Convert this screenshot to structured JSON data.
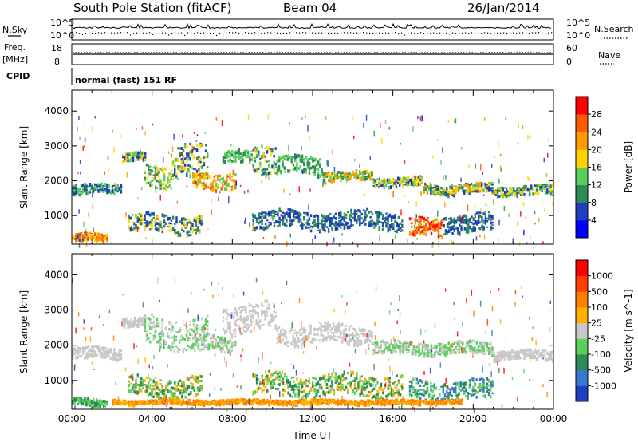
{
  "header": {
    "station": "South Pole Station (fitACF)",
    "beam": "Beam 04",
    "date": "26/Jan/2014"
  },
  "top_panels": {
    "nsky_label": "N.Sky",
    "nsky_ticks": [
      "10^5",
      "10^0"
    ],
    "nsearch_label": "N.Search",
    "nsearch_ticks": [
      "10^5",
      "10^0"
    ],
    "freq_label_1": "Freq.",
    "freq_label_2": "[MHz]",
    "freq_ticks": [
      "18",
      "8"
    ],
    "nave_label": "Nave",
    "nave_ticks": [
      "60",
      "0"
    ],
    "cpid_label": "CPID",
    "cpid_text": "normal (fast) 151 RF"
  },
  "chart_data": [
    {
      "type": "heatmap",
      "name": "power-panel",
      "ylabel": "Slant Range [km]",
      "xlabel": "",
      "ylim": [
        180,
        4600
      ],
      "xlim": [
        0,
        24
      ],
      "y_ticks": [
        1000,
        2000,
        3000,
        4000
      ],
      "y_tick_labels": [
        "1000",
        "2000",
        "3000",
        "4000"
      ],
      "x_ticks": [
        0,
        4,
        8,
        12,
        16,
        20,
        24
      ],
      "colorbar": {
        "label": "Power [dB]",
        "levels": [
          "4",
          "8",
          "12",
          "16",
          "20",
          "24",
          "28"
        ],
        "colors": [
          "#0000ff",
          "#1f3fbf",
          "#2e8b57",
          "#5ad05a",
          "#ffd200",
          "#ff9a00",
          "#ff5a00",
          "#ff0000"
        ]
      },
      "scatter_bands": [
        {
          "h0": 0.0,
          "h1": 1.2,
          "r": 1750,
          "w": 150,
          "colors": [
            "#1f3fbf",
            "#2e8b57",
            "#5ad05a"
          ]
        },
        {
          "h0": 1.2,
          "h1": 2.5,
          "r": 1850,
          "w": 120,
          "colors": [
            "#1f3fbf",
            "#5ad05a"
          ]
        },
        {
          "h0": 2.5,
          "h1": 3.7,
          "r": 2700,
          "w": 120,
          "colors": [
            "#1f3fbf",
            "#5ad05a",
            "#ffd200"
          ]
        },
        {
          "h0": 3.6,
          "h1": 5.0,
          "r": 2200,
          "w": 320,
          "colors": [
            "#2e8b57",
            "#5ad05a",
            "#ffd200"
          ]
        },
        {
          "h0": 5.0,
          "h1": 6.8,
          "r": 2500,
          "w": 480,
          "colors": [
            "#1f3fbf",
            "#2e8b57",
            "#5ad05a",
            "#ffd200"
          ]
        },
        {
          "h0": 6.0,
          "h1": 8.2,
          "r": 2050,
          "w": 220,
          "colors": [
            "#5ad05a",
            "#ffd200",
            "#ff9a00",
            "#ff5a00"
          ]
        },
        {
          "h0": 7.5,
          "h1": 9.0,
          "r": 2700,
          "w": 180,
          "colors": [
            "#2e8b57",
            "#5ad05a"
          ]
        },
        {
          "h0": 9.0,
          "h1": 10.2,
          "r": 2750,
          "w": 420,
          "colors": [
            "#1f3fbf",
            "#2e8b57",
            "#5ad05a",
            "#ffd200"
          ]
        },
        {
          "h0": 10.2,
          "h1": 12.5,
          "r": 2450,
          "w": 250,
          "colors": [
            "#2e8b57",
            "#5ad05a"
          ]
        },
        {
          "h0": 12.5,
          "h1": 15.0,
          "r": 2150,
          "w": 140,
          "colors": [
            "#2e8b57",
            "#5ad05a",
            "#ffd200",
            "#ff9a00"
          ]
        },
        {
          "h0": 15.0,
          "h1": 17.5,
          "r": 2000,
          "w": 130,
          "colors": [
            "#1f3fbf",
            "#5ad05a",
            "#ffd200"
          ]
        },
        {
          "h0": 17.5,
          "h1": 21.0,
          "r": 1800,
          "w": 140,
          "colors": [
            "#1f3fbf",
            "#2e8b57",
            "#5ad05a",
            "#ffd200",
            "#ff9a00"
          ]
        },
        {
          "h0": 21.0,
          "h1": 24.0,
          "r": 1750,
          "w": 130,
          "colors": [
            "#1f3fbf",
            "#2e8b57",
            "#5ad05a",
            "#ffd200"
          ]
        },
        {
          "h0": 0.0,
          "h1": 1.8,
          "r": 400,
          "w": 110,
          "colors": [
            "#ff9a00",
            "#ff5a00",
            "#ffd200",
            "#1f3fbf"
          ]
        },
        {
          "h0": 2.8,
          "h1": 6.5,
          "r": 800,
          "w": 250,
          "colors": [
            "#1f3fbf",
            "#2e8b57",
            "#ffd200"
          ]
        },
        {
          "h0": 9.0,
          "h1": 16.5,
          "r": 900,
          "w": 250,
          "colors": [
            "#1f3fbf",
            "#2e8b57"
          ]
        },
        {
          "h0": 16.8,
          "h1": 18.5,
          "r": 650,
          "w": 260,
          "colors": [
            "#ff0000",
            "#ff5a00",
            "#ff9a00"
          ]
        },
        {
          "h0": 18.5,
          "h1": 21.0,
          "r": 800,
          "w": 250,
          "colors": [
            "#1f3fbf",
            "#2e8b57"
          ]
        }
      ]
    },
    {
      "type": "heatmap",
      "name": "velocity-panel",
      "ylabel": "Slant Range [km]",
      "xlabel": "Time UT",
      "ylim": [
        180,
        4600
      ],
      "xlim": [
        0,
        24
      ],
      "y_ticks": [
        1000,
        2000,
        3000,
        4000
      ],
      "y_tick_labels": [
        "1000",
        "2000",
        "3000",
        "4000"
      ],
      "x_ticks": [
        0,
        4,
        8,
        12,
        16,
        20,
        24
      ],
      "x_tick_labels": [
        "00:00",
        "04:00",
        "08:00",
        "12:00",
        "16:00",
        "20:00",
        "00:00"
      ],
      "colorbar": {
        "label": "Velocity [m s^-1]",
        "levels": [
          "1000",
          "500",
          "100",
          "25",
          "-25",
          "-100",
          "-500",
          "-1000"
        ],
        "colors": [
          "#1f3fbf",
          "#3a78d0",
          "#2e8b57",
          "#5ad05a",
          "#c8c8c8",
          "#ffb000",
          "#ff8000",
          "#ff4000",
          "#ff0000"
        ]
      },
      "scatter_bands": [
        {
          "h0": 0.0,
          "h1": 2.5,
          "r": 1800,
          "w": 160,
          "colors": [
            "#c8c8c8"
          ]
        },
        {
          "h0": 2.5,
          "h1": 3.7,
          "r": 2700,
          "w": 120,
          "colors": [
            "#c8c8c8"
          ]
        },
        {
          "h0": 3.6,
          "h1": 6.8,
          "r": 2400,
          "w": 420,
          "colors": [
            "#c8c8c8",
            "#5ad05a"
          ]
        },
        {
          "h0": 6.0,
          "h1": 8.2,
          "r": 2050,
          "w": 220,
          "colors": [
            "#c8c8c8",
            "#5ad05a"
          ]
        },
        {
          "h0": 7.5,
          "h1": 10.2,
          "r": 2800,
          "w": 400,
          "colors": [
            "#c8c8c8"
          ]
        },
        {
          "h0": 10.2,
          "h1": 15.0,
          "r": 2350,
          "w": 260,
          "colors": [
            "#c8c8c8"
          ]
        },
        {
          "h0": 15.0,
          "h1": 21.0,
          "r": 1950,
          "w": 170,
          "colors": [
            "#c8c8c8",
            "#5ad05a"
          ]
        },
        {
          "h0": 21.0,
          "h1": 24.0,
          "r": 1750,
          "w": 130,
          "colors": [
            "#c8c8c8"
          ]
        },
        {
          "h0": 0.0,
          "h1": 1.8,
          "r": 420,
          "w": 100,
          "colors": [
            "#2e8b57",
            "#5ad05a"
          ]
        },
        {
          "h0": 2.8,
          "h1": 6.5,
          "r": 850,
          "w": 280,
          "colors": [
            "#5ad05a",
            "#2e8b57",
            "#ffb000"
          ]
        },
        {
          "h0": 9.0,
          "h1": 16.5,
          "r": 900,
          "w": 300,
          "colors": [
            "#2e8b57",
            "#5ad05a",
            "#ffb000"
          ]
        },
        {
          "h0": 16.8,
          "h1": 21.0,
          "r": 750,
          "w": 280,
          "colors": [
            "#3a78d0",
            "#2e8b57",
            "#5ad05a"
          ]
        },
        {
          "h0": 2.0,
          "h1": 19.5,
          "r": 420,
          "w": 60,
          "colors": [
            "#ffb000",
            "#ff8000"
          ]
        }
      ]
    }
  ]
}
